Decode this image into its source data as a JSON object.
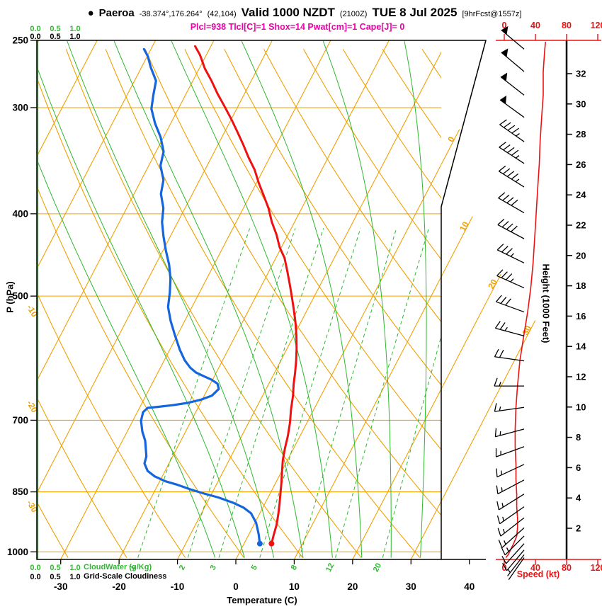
{
  "header": {
    "bullet": "●",
    "station": "Paeroa",
    "coords": "-38.374°,176.264°",
    "grid": "(42,104)",
    "valid": "Valid 1000 NZDT",
    "valid_zulu": "(2100Z)",
    "date": "TUE 8 Jul 2025",
    "fcst": "[9hrFcst@1557z]",
    "params": "Plcl=938 Tlcl[C]=1 Shox=14 Pwat[cm]=1 Cape[J]= 0"
  },
  "axis_titles": {
    "pressure": "P (hPa)",
    "temperature": "Temperature (C)",
    "height": "Height (1000 Feet)",
    "speed": "Speed (kt)"
  },
  "left_scales": {
    "ticks": [
      "0.0",
      "0.5",
      "1.0"
    ],
    "cloudwater_label": "CloudWater (g/Kg)",
    "gridscale_label": "Grid-Scale Cloudiness"
  },
  "colors": {
    "background_lines": "#f0a000",
    "moisture_lines": "#2eb82e",
    "temperature": "#ee1111",
    "dewpoint": "#1565dd",
    "params_text": "#ee00aa",
    "wind": "#000000",
    "speed_axis": "#ee1111"
  },
  "chart_data": {
    "type": "skewt",
    "title": "Paeroa skew-T log-P sounding, 9 hr forecast valid 1000 NZDT (2100Z) TUE 8 Jul 2025",
    "pressure_axis_hpa": [
      250,
      300,
      400,
      500,
      700,
      850,
      1000
    ],
    "temperature_axis_c": [
      -30,
      -20,
      -10,
      0,
      10,
      20,
      30,
      40
    ],
    "height_axis_kft": [
      2,
      4,
      6,
      8,
      10,
      12,
      14,
      16,
      18,
      20,
      22,
      24,
      26,
      28,
      30,
      32
    ],
    "speed_axis_kt": [
      0,
      40,
      80,
      120
    ],
    "isotherm_step_c": 10,
    "isotherm_labels_right_c": [
      0,
      10,
      20,
      30
    ],
    "dry_adiabat_labels_c": [
      -10,
      -20,
      -30
    ],
    "dry_adiabats_c": [
      -30,
      -20,
      -10,
      0,
      10,
      20,
      30,
      40,
      50,
      60,
      70,
      80,
      90,
      100,
      110,
      120
    ],
    "moist_adiabats_c": [
      -5,
      0,
      5,
      10,
      15,
      20,
      25,
      30
    ],
    "mixing_ratio_lines_gkg": [
      1,
      2,
      3,
      5,
      8,
      12,
      20
    ],
    "surface_point": {
      "p": 978,
      "t": 4.7,
      "td": 2.7
    },
    "temperature_profile_p_c": [
      [
        978,
        4.7
      ],
      [
        955,
        4.3
      ],
      [
        930,
        3.9
      ],
      [
        905,
        3.3
      ],
      [
        880,
        2.6
      ],
      [
        855,
        1.8
      ],
      [
        830,
        1.0
      ],
      [
        805,
        0.1
      ],
      [
        780,
        -0.8
      ],
      [
        755,
        -1.5
      ],
      [
        730,
        -2.1
      ],
      [
        705,
        -2.9
      ],
      [
        680,
        -3.9
      ],
      [
        655,
        -4.8
      ],
      [
        635,
        -5.7
      ],
      [
        615,
        -6.5
      ],
      [
        595,
        -7.4
      ],
      [
        576,
        -8.4
      ],
      [
        556,
        -9.6
      ],
      [
        537,
        -10.9
      ],
      [
        519,
        -12.3
      ],
      [
        501,
        -13.8
      ],
      [
        484,
        -15.3
      ],
      [
        467,
        -16.9
      ],
      [
        451,
        -18.5
      ],
      [
        438,
        -20.3
      ],
      [
        423,
        -22.0
      ],
      [
        409,
        -23.9
      ],
      [
        394,
        -25.7
      ],
      [
        381,
        -27.6
      ],
      [
        368,
        -29.6
      ],
      [
        355,
        -31.5
      ],
      [
        343,
        -33.7
      ],
      [
        331,
        -35.8
      ],
      [
        320,
        -37.9
      ],
      [
        309,
        -40.1
      ],
      [
        299,
        -42.3
      ],
      [
        289,
        -44.6
      ],
      [
        279,
        -46.8
      ],
      [
        270,
        -49.0
      ],
      [
        260,
        -51.1
      ],
      [
        254,
        -52.7
      ]
    ],
    "dewpoint_profile_p_c": [
      [
        978,
        2.7
      ],
      [
        952,
        1.6
      ],
      [
        924,
        0.2
      ],
      [
        901,
        -1.5
      ],
      [
        887,
        -3.3
      ],
      [
        875,
        -5.6
      ],
      [
        863,
        -8.5
      ],
      [
        854,
        -11.3
      ],
      [
        844,
        -14.1
      ],
      [
        834,
        -16.6
      ],
      [
        826,
        -19.0
      ],
      [
        815,
        -21.3
      ],
      [
        803,
        -23.0
      ],
      [
        787,
        -24.2
      ],
      [
        772,
        -24.5
      ],
      [
        740,
        -26.1
      ],
      [
        722,
        -27.4
      ],
      [
        701,
        -28.6
      ],
      [
        685,
        -29.0
      ],
      [
        677,
        -28.6
      ],
      [
        675,
        -26.9
      ],
      [
        672,
        -24.6
      ],
      [
        668,
        -22.3
      ],
      [
        662,
        -20.2
      ],
      [
        655,
        -18.7
      ],
      [
        643,
        -18.1
      ],
      [
        634,
        -18.8
      ],
      [
        627,
        -20.2
      ],
      [
        622,
        -21.6
      ],
      [
        615,
        -23.5
      ],
      [
        607,
        -24.9
      ],
      [
        595,
        -26.5
      ],
      [
        578,
        -28.3
      ],
      [
        556,
        -30.4
      ],
      [
        535,
        -32.4
      ],
      [
        515,
        -34.1
      ],
      [
        495,
        -35.1
      ],
      [
        477,
        -36.2
      ],
      [
        459,
        -37.7
      ],
      [
        442,
        -39.5
      ],
      [
        425,
        -41.2
      ],
      [
        409,
        -42.7
      ],
      [
        394,
        -43.7
      ],
      [
        379,
        -45.4
      ],
      [
        365,
        -46.2
      ],
      [
        351,
        -48.0
      ],
      [
        338,
        -48.7
      ],
      [
        325,
        -50.5
      ],
      [
        313,
        -52.7
      ],
      [
        301,
        -54.6
      ],
      [
        290,
        -55.5
      ],
      [
        279,
        -56.3
      ],
      [
        269,
        -58.4
      ],
      [
        261,
        -59.9
      ],
      [
        256,
        -61.2
      ]
    ],
    "wind_profile_p_dir_kt": [
      [
        251,
        310,
        53
      ],
      [
        256,
        310,
        52
      ],
      [
        272,
        310,
        50
      ],
      [
        290,
        308,
        50
      ],
      [
        308,
        306,
        48
      ],
      [
        329,
        305,
        46
      ],
      [
        349,
        303,
        45
      ],
      [
        372,
        302,
        43
      ],
      [
        399,
        300,
        41
      ],
      [
        428,
        298,
        39
      ],
      [
        457,
        296,
        37
      ],
      [
        489,
        294,
        34
      ],
      [
        522,
        290,
        30
      ],
      [
        557,
        285,
        25
      ],
      [
        596,
        278,
        20
      ],
      [
        638,
        270,
        17
      ],
      [
        676,
        262,
        15
      ],
      [
        717,
        255,
        14
      ],
      [
        752,
        250,
        14
      ],
      [
        789,
        245,
        15
      ],
      [
        823,
        242,
        15
      ],
      [
        855,
        238,
        16
      ],
      [
        885,
        235,
        16
      ],
      [
        912,
        232,
        17
      ],
      [
        937,
        228,
        17
      ],
      [
        958,
        225,
        16
      ],
      [
        978,
        222,
        12
      ],
      [
        995,
        220,
        8
      ],
      [
        1008,
        218,
        5
      ],
      [
        1016,
        215,
        2
      ]
    ]
  }
}
